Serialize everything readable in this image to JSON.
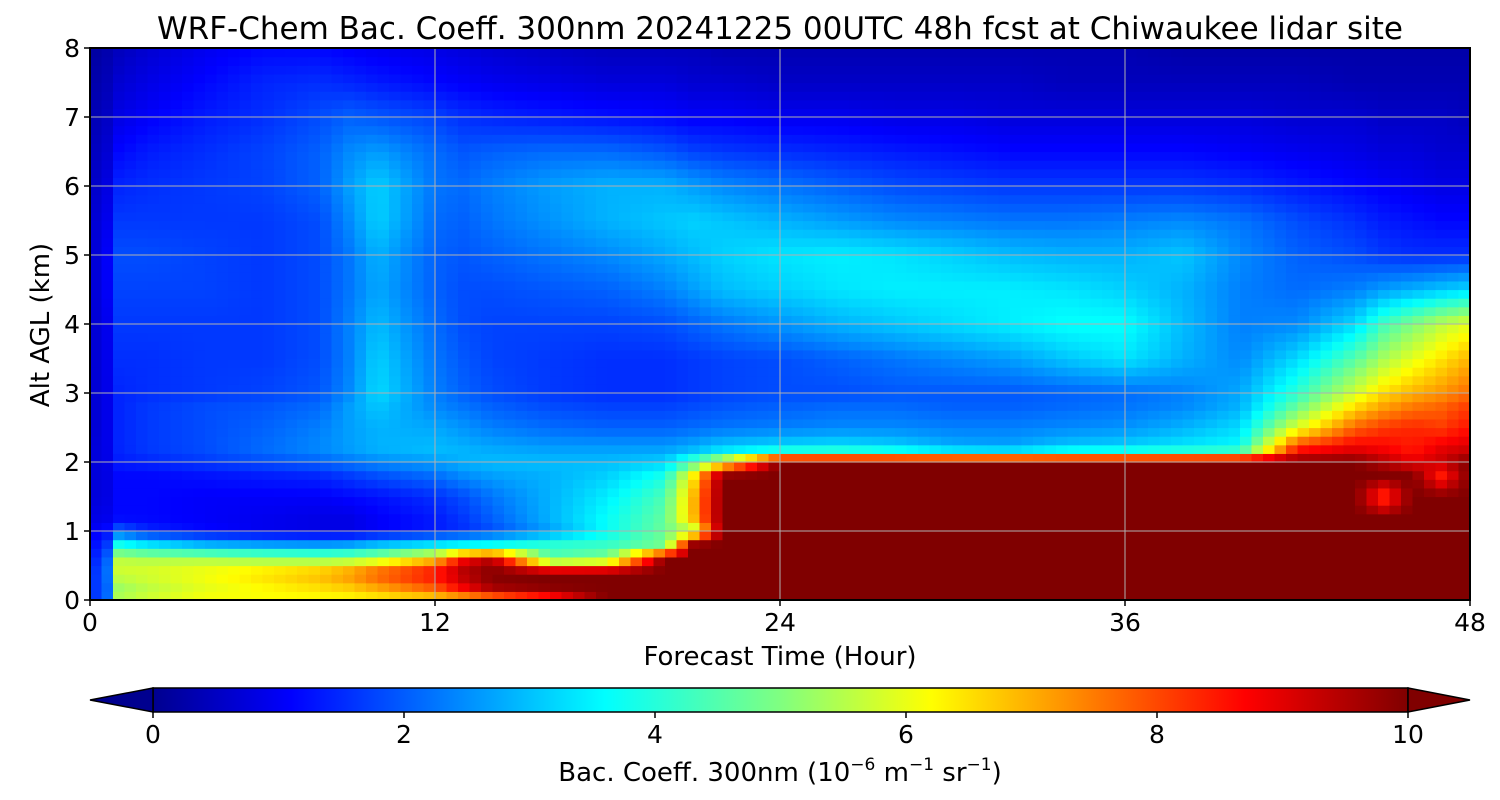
{
  "chart_data": {
    "type": "heatmap",
    "title": "WRF-Chem Bac. Coeff. 300nm  20241225 00UTC 48h fcst at Chiwaukee lidar site",
    "xlabel": "Forecast Time (Hour)",
    "ylabel": "Alt AGL (km)",
    "x_ticks": [
      "0",
      "12",
      "24",
      "36",
      "48"
    ],
    "y_ticks": [
      "0",
      "1",
      "2",
      "3",
      "4",
      "5",
      "6",
      "7",
      "8"
    ],
    "xlim": [
      0,
      48
    ],
    "ylim": [
      0,
      8
    ],
    "grid": true,
    "colormap": "jet",
    "colorbar": {
      "label_main": "Bac. Coeff. 300nm  (10",
      "label_exp1": "−6",
      "label_mid": " m",
      "label_exp2": "−1",
      "label_mid2": " sr",
      "label_exp3": "−1",
      "label_end": ")",
      "ticks": [
        "0",
        "2",
        "4",
        "6",
        "8",
        "10"
      ],
      "range": [
        0,
        10
      ],
      "extend": "both"
    },
    "x": [
      0,
      0.5,
      1,
      2,
      4,
      6,
      8,
      9,
      10,
      12,
      13,
      14,
      16,
      18,
      20,
      21,
      22,
      24,
      26,
      28,
      30,
      32,
      34,
      36,
      38,
      40,
      42,
      44,
      45,
      46,
      47,
      48
    ],
    "y": [
      0,
      0.2,
      0.4,
      0.6,
      0.8,
      1,
      1.2,
      1.5,
      1.8,
      2,
      2.2,
      2.5,
      2.8,
      3,
      3.5,
      4,
      4.5,
      5,
      5.5,
      6,
      6.5,
      7,
      7.5,
      8
    ],
    "values": [
      [
        2.0,
        1.5,
        5.5,
        5.8,
        6.2,
        6.2,
        6.2,
        6.2,
        6.3,
        6.5,
        6.8,
        7.2,
        8.2,
        10,
        10,
        10,
        10,
        10,
        10,
        10,
        10,
        10,
        10,
        10,
        10,
        10,
        10,
        10,
        10,
        10,
        10,
        10
      ],
      [
        2.0,
        1.5,
        5.3,
        5.6,
        6.0,
        6.3,
        6.6,
        6.8,
        7.2,
        8.0,
        9.0,
        9.8,
        10,
        10,
        10,
        10,
        10,
        10,
        10,
        10,
        10,
        10,
        10,
        10,
        10,
        10,
        10,
        10,
        10,
        10,
        10,
        10
      ],
      [
        2.0,
        1.5,
        5.8,
        5.9,
        6.2,
        6.6,
        7.0,
        7.4,
        8.0,
        8.8,
        9.6,
        10,
        10,
        10,
        10,
        10,
        10,
        10,
        10,
        10,
        10,
        10,
        10,
        10,
        10,
        10,
        10,
        10,
        10,
        10,
        10,
        10
      ],
      [
        1.8,
        1.4,
        5.6,
        5.5,
        5.5,
        5.3,
        5.2,
        5.3,
        5.6,
        6.8,
        8.8,
        9.5,
        4.6,
        5.0,
        10,
        10,
        10,
        10,
        10,
        10,
        10,
        10,
        10,
        10,
        10,
        10,
        10,
        10,
        10,
        10,
        10,
        10
      ],
      [
        1.5,
        1.3,
        4.0,
        3.6,
        3.1,
        2.9,
        2.8,
        2.9,
        3.2,
        3.6,
        3.8,
        3.9,
        4.2,
        4.3,
        4.9,
        10,
        10,
        10,
        10,
        10,
        10,
        10,
        10,
        10,
        10,
        10,
        10,
        10,
        10,
        10,
        10,
        10
      ],
      [
        1.2,
        1.2,
        2.2,
        1.6,
        1.3,
        1.1,
        1.0,
        1.0,
        1.2,
        1.5,
        1.7,
        2.0,
        2.8,
        3.8,
        4.8,
        5.5,
        10,
        10,
        10,
        10,
        10,
        10,
        10,
        10,
        10,
        10,
        10,
        10,
        10,
        10,
        10,
        10
      ],
      [
        1.0,
        1.0,
        1.3,
        1.3,
        1.2,
        1.1,
        1.0,
        1.0,
        1.2,
        1.5,
        1.8,
        2.2,
        3.0,
        3.8,
        4.7,
        7.0,
        10,
        10,
        10,
        10,
        10,
        10,
        10,
        10,
        10,
        10,
        10,
        10,
        10,
        10,
        10,
        10
      ],
      [
        0.9,
        0.9,
        1.3,
        1.3,
        1.2,
        1.2,
        1.2,
        1.3,
        1.4,
        1.7,
        2.0,
        2.4,
        3.0,
        3.6,
        4.5,
        7.0,
        10,
        10,
        10,
        10,
        10,
        10,
        10,
        10,
        10,
        10,
        10,
        10,
        8.2,
        10,
        10,
        10
      ],
      [
        0.9,
        0.9,
        1.3,
        1.3,
        1.4,
        1.5,
        1.6,
        1.8,
        2.0,
        2.3,
        2.6,
        2.8,
        3.0,
        3.3,
        4.0,
        6.5,
        10,
        10,
        10,
        10,
        10,
        10,
        10,
        10,
        10,
        10,
        10,
        10,
        10,
        10,
        8.5,
        10
      ],
      [
        0.9,
        0.9,
        1.5,
        1.6,
        1.8,
        2.0,
        2.2,
        2.4,
        2.6,
        2.8,
        3.0,
        3.1,
        3.1,
        3.1,
        3.3,
        4.5,
        6.0,
        10,
        10,
        10,
        10,
        10,
        10,
        10,
        10,
        10,
        10,
        10,
        9.5,
        9.0,
        9.3,
        10
      ],
      [
        0.9,
        0.9,
        1.6,
        1.8,
        2.0,
        2.3,
        2.6,
        2.8,
        3.0,
        3.1,
        3.0,
        2.9,
        2.8,
        2.8,
        2.8,
        3.0,
        3.3,
        3.5,
        3.6,
        3.4,
        3.0,
        2.9,
        3.3,
        3.4,
        3.6,
        3.8,
        8.5,
        9.0,
        8.8,
        8.5,
        9.0,
        9.2
      ],
      [
        0.8,
        0.9,
        1.6,
        1.8,
        2.0,
        2.2,
        2.5,
        2.8,
        3.0,
        2.9,
        2.7,
        2.5,
        2.3,
        2.2,
        2.2,
        2.3,
        2.4,
        2.5,
        2.6,
        2.6,
        2.5,
        2.5,
        2.6,
        2.7,
        3.0,
        3.4,
        6.0,
        7.8,
        8.2,
        8.4,
        8.2,
        8.6
      ],
      [
        0.8,
        0.9,
        1.6,
        1.8,
        2.0,
        2.1,
        2.3,
        2.8,
        3.2,
        2.6,
        2.4,
        2.2,
        2.0,
        1.9,
        1.9,
        2.0,
        2.1,
        2.2,
        2.3,
        2.3,
        2.2,
        2.2,
        2.3,
        2.4,
        2.6,
        3.0,
        4.8,
        6.6,
        7.2,
        7.6,
        7.8,
        8.2
      ],
      [
        0.8,
        0.9,
        1.6,
        1.7,
        1.8,
        1.9,
        2.1,
        2.6,
        3.4,
        2.5,
        2.2,
        2.0,
        1.8,
        1.7,
        1.7,
        1.8,
        1.9,
        2.0,
        2.0,
        2.1,
        2.1,
        2.1,
        2.2,
        2.3,
        2.5,
        2.9,
        4.2,
        5.8,
        6.6,
        7.0,
        7.3,
        7.7
      ],
      [
        0.8,
        0.9,
        1.7,
        1.7,
        1.8,
        1.8,
        2.0,
        2.5,
        3.3,
        2.4,
        2.1,
        1.9,
        1.8,
        1.7,
        1.7,
        1.8,
        1.9,
        2.0,
        2.2,
        2.4,
        2.6,
        2.8,
        3.2,
        3.5,
        3.0,
        2.6,
        3.4,
        4.6,
        5.4,
        6.0,
        6.5,
        7.0
      ],
      [
        0.8,
        0.9,
        1.8,
        1.8,
        1.8,
        1.8,
        2.0,
        2.5,
        3.1,
        2.3,
        2.0,
        1.9,
        1.9,
        1.9,
        2.0,
        2.2,
        2.4,
        2.7,
        3.0,
        3.2,
        3.4,
        3.6,
        3.8,
        3.8,
        3.1,
        2.5,
        2.6,
        3.4,
        4.4,
        5.0,
        5.6,
        6.0
      ],
      [
        0.8,
        1.0,
        1.9,
        1.9,
        1.9,
        1.8,
        2.0,
        2.4,
        2.9,
        2.2,
        2.0,
        2.0,
        2.1,
        2.2,
        2.5,
        2.8,
        3.1,
        3.3,
        3.5,
        3.6,
        3.6,
        3.6,
        3.5,
        3.3,
        3.0,
        2.5,
        2.3,
        2.5,
        2.8,
        3.0,
        3.2,
        3.4
      ],
      [
        0.8,
        1.0,
        2.0,
        2.0,
        1.9,
        1.8,
        2.0,
        2.4,
        3.0,
        2.2,
        2.1,
        2.2,
        2.4,
        2.6,
        2.9,
        3.1,
        3.3,
        3.5,
        3.6,
        3.5,
        3.3,
        3.1,
        3.0,
        3.0,
        3.2,
        2.6,
        2.2,
        2.0,
        1.8,
        1.7,
        1.7,
        1.7
      ],
      [
        0.8,
        0.9,
        1.8,
        1.8,
        1.8,
        1.8,
        2.0,
        2.6,
        3.3,
        2.3,
        2.2,
        2.4,
        2.7,
        3.0,
        3.2,
        3.3,
        3.2,
        3.0,
        2.8,
        2.6,
        2.5,
        2.4,
        2.4,
        2.5,
        2.6,
        2.4,
        2.0,
        1.7,
        1.5,
        1.4,
        1.3,
        1.3
      ],
      [
        0.7,
        0.8,
        1.6,
        1.7,
        1.8,
        1.9,
        2.2,
        2.8,
        3.3,
        2.4,
        2.3,
        2.5,
        2.8,
        3.0,
        3.0,
        2.8,
        2.6,
        2.4,
        2.2,
        2.0,
        1.9,
        1.8,
        1.8,
        1.8,
        1.8,
        1.7,
        1.5,
        1.3,
        1.2,
        1.1,
        1.0,
        1.0
      ],
      [
        0.6,
        0.7,
        1.3,
        1.5,
        1.7,
        1.9,
        2.2,
        2.6,
        2.8,
        2.3,
        2.1,
        2.2,
        2.3,
        2.3,
        2.1,
        1.9,
        1.8,
        1.7,
        1.6,
        1.5,
        1.4,
        1.3,
        1.3,
        1.3,
        1.3,
        1.2,
        1.1,
        1.0,
        0.9,
        0.9,
        0.8,
        0.8
      ],
      [
        0.5,
        0.6,
        1.0,
        1.2,
        1.5,
        1.7,
        2.0,
        2.2,
        2.1,
        1.9,
        1.7,
        1.6,
        1.5,
        1.4,
        1.3,
        1.2,
        1.2,
        1.1,
        1.1,
        1.0,
        1.0,
        0.9,
        0.9,
        0.9,
        0.9,
        0.9,
        0.8,
        0.8,
        0.7,
        0.7,
        0.7,
        0.6
      ],
      [
        0.4,
        0.5,
        0.8,
        1.0,
        1.3,
        1.6,
        1.7,
        1.6,
        1.5,
        1.3,
        1.2,
        1.1,
        1.0,
        0.9,
        0.9,
        0.8,
        0.8,
        0.7,
        0.7,
        0.7,
        0.7,
        0.7,
        0.6,
        0.6,
        0.6,
        0.6,
        0.6,
        0.5,
        0.5,
        0.5,
        0.5,
        0.5
      ],
      [
        0.3,
        0.4,
        0.6,
        0.8,
        1.1,
        1.3,
        1.3,
        1.2,
        1.1,
        1.0,
        0.9,
        0.8,
        0.7,
        0.6,
        0.6,
        0.6,
        0.5,
        0.5,
        0.5,
        0.5,
        0.5,
        0.5,
        0.5,
        0.5,
        0.4,
        0.4,
        0.4,
        0.4,
        0.4,
        0.4,
        0.4,
        0.4
      ]
    ]
  }
}
